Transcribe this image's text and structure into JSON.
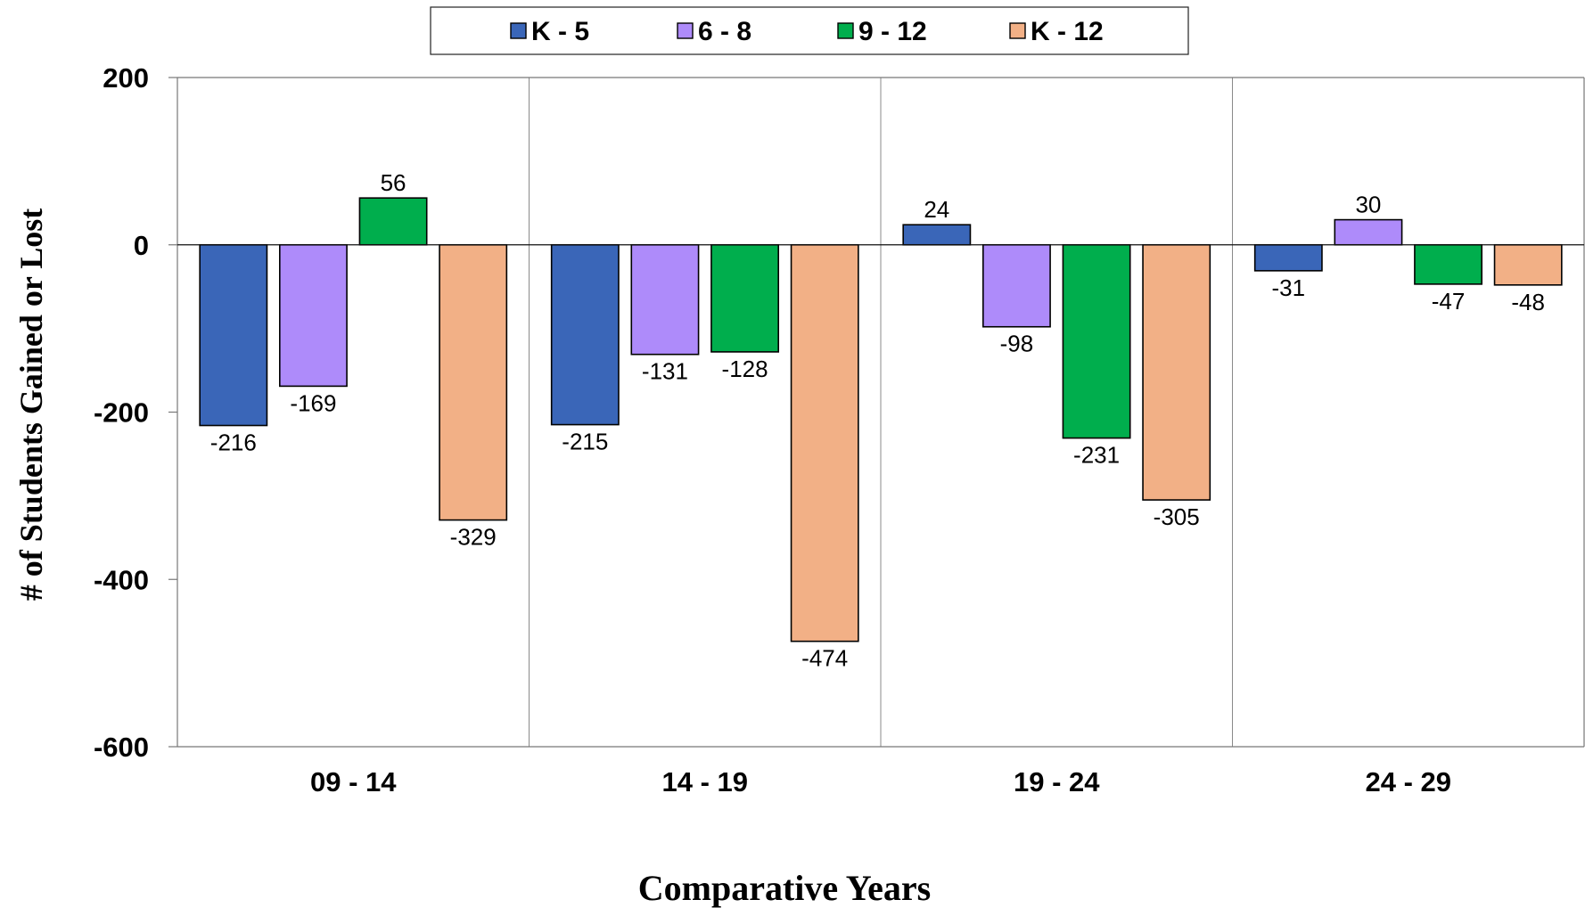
{
  "chart_data": {
    "type": "bar",
    "title": "",
    "xlabel": "Comparative Years",
    "ylabel": "# of Students Gained or Lost",
    "categories": [
      "09 - 14",
      "14 - 19",
      "19 - 24",
      "24 - 29"
    ],
    "series": [
      {
        "name": "K - 5",
        "color": "#3A66B8",
        "values": [
          -216,
          -215,
          24,
          -31
        ]
      },
      {
        "name": "6 - 8",
        "color": "#AE8BFA",
        "values": [
          -169,
          -131,
          -98,
          30
        ]
      },
      {
        "name": "9 - 12",
        "color": "#00AE4D",
        "values": [
          56,
          -128,
          -231,
          -47
        ]
      },
      {
        "name": "K - 12",
        "color": "#F2B086",
        "values": [
          -329,
          -474,
          -305,
          -48
        ]
      }
    ],
    "ylim": [
      -600,
      200
    ],
    "yticks": [
      200,
      0,
      -200,
      -400,
      -600
    ],
    "ytick_labels": [
      "200",
      "0",
      "-200",
      "-400",
      "-600"
    ],
    "grid": "vertical category separators",
    "legend_position": "top-center",
    "data_labels": true
  }
}
